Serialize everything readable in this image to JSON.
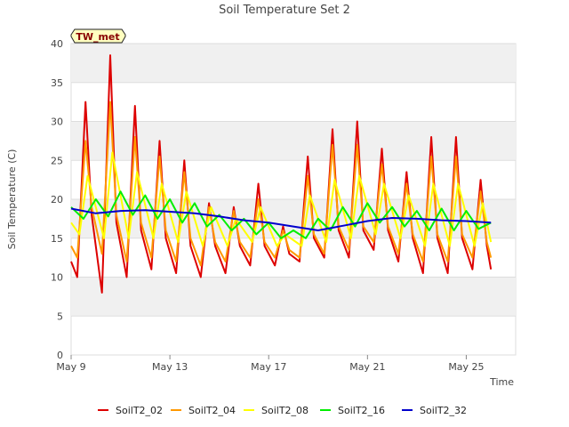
{
  "chart_data": {
    "type": "line",
    "title": "Soil Temperature Set 2",
    "xlabel": "Time",
    "ylabel": "Soil Temperature (C)",
    "site_label": "TW_met",
    "ylim": [
      0,
      40
    ],
    "yticks": [
      0,
      5,
      10,
      15,
      20,
      25,
      30,
      35,
      40
    ],
    "xlim": [
      "2024-05-09",
      "2024-05-27"
    ],
    "xticks": [
      {
        "date": "2024-05-09",
        "label": "May 9"
      },
      {
        "date": "2024-05-13",
        "label": "May 13"
      },
      {
        "date": "2024-05-17",
        "label": "May 17"
      },
      {
        "date": "2024-05-21",
        "label": "May 21"
      },
      {
        "date": "2024-05-25",
        "label": "May 25"
      }
    ],
    "grid": true,
    "legend_position": "bottom",
    "series": [
      {
        "name": "SoilT2_02",
        "color": "#dd0000",
        "values": [
          [
            "2024-05-09 00:00",
            12.0
          ],
          [
            "2024-05-09 06:00",
            10.0
          ],
          [
            "2024-05-09 14:00",
            32.5
          ],
          [
            "2024-05-09 20:00",
            18.0
          ],
          [
            "2024-05-10 06:00",
            8.0
          ],
          [
            "2024-05-10 14:00",
            38.5
          ],
          [
            "2024-05-10 20:00",
            17.0
          ],
          [
            "2024-05-11 06:00",
            10.0
          ],
          [
            "2024-05-11 14:00",
            32.0
          ],
          [
            "2024-05-11 20:00",
            16.0
          ],
          [
            "2024-05-12 06:00",
            11.0
          ],
          [
            "2024-05-12 14:00",
            27.5
          ],
          [
            "2024-05-12 20:00",
            15.0
          ],
          [
            "2024-05-13 06:00",
            10.5
          ],
          [
            "2024-05-13 14:00",
            25.0
          ],
          [
            "2024-05-13 20:00",
            14.0
          ],
          [
            "2024-05-14 06:00",
            10.0
          ],
          [
            "2024-05-14 14:00",
            19.5
          ],
          [
            "2024-05-14 20:00",
            14.0
          ],
          [
            "2024-05-15 06:00",
            10.5
          ],
          [
            "2024-05-15 14:00",
            19.0
          ],
          [
            "2024-05-15 20:00",
            14.0
          ],
          [
            "2024-05-16 06:00",
            11.5
          ],
          [
            "2024-05-16 14:00",
            22.0
          ],
          [
            "2024-05-16 20:00",
            14.0
          ],
          [
            "2024-05-17 06:00",
            11.5
          ],
          [
            "2024-05-17 14:00",
            16.5
          ],
          [
            "2024-05-17 20:00",
            13.0
          ],
          [
            "2024-05-18 06:00",
            12.0
          ],
          [
            "2024-05-18 14:00",
            25.5
          ],
          [
            "2024-05-18 20:00",
            15.0
          ],
          [
            "2024-05-19 06:00",
            12.5
          ],
          [
            "2024-05-19 14:00",
            29.0
          ],
          [
            "2024-05-19 20:00",
            16.0
          ],
          [
            "2024-05-20 06:00",
            12.5
          ],
          [
            "2024-05-20 14:00",
            30.0
          ],
          [
            "2024-05-20 20:00",
            16.0
          ],
          [
            "2024-05-21 06:00",
            13.5
          ],
          [
            "2024-05-21 14:00",
            26.5
          ],
          [
            "2024-05-21 20:00",
            16.0
          ],
          [
            "2024-05-22 06:00",
            12.0
          ],
          [
            "2024-05-22 14:00",
            23.5
          ],
          [
            "2024-05-22 20:00",
            15.0
          ],
          [
            "2024-05-23 06:00",
            10.5
          ],
          [
            "2024-05-23 14:00",
            28.0
          ],
          [
            "2024-05-23 20:00",
            15.0
          ],
          [
            "2024-05-24 06:00",
            10.5
          ],
          [
            "2024-05-24 14:00",
            28.0
          ],
          [
            "2024-05-24 20:00",
            15.0
          ],
          [
            "2024-05-25 06:00",
            11.0
          ],
          [
            "2024-05-25 14:00",
            22.5
          ],
          [
            "2024-05-25 20:00",
            14.0
          ],
          [
            "2024-05-26 00:00",
            11.0
          ]
        ]
      },
      {
        "name": "SoilT2_04",
        "color": "#ff9900",
        "values": [
          [
            "2024-05-09 00:00",
            14.0
          ],
          [
            "2024-05-09 06:00",
            12.5
          ],
          [
            "2024-05-09 14:00",
            27.5
          ],
          [
            "2024-05-09 20:00",
            19.0
          ],
          [
            "2024-05-10 06:00",
            13.0
          ],
          [
            "2024-05-10 14:00",
            32.5
          ],
          [
            "2024-05-10 20:00",
            18.0
          ],
          [
            "2024-05-11 06:00",
            12.0
          ],
          [
            "2024-05-11 14:00",
            28.0
          ],
          [
            "2024-05-11 20:00",
            17.0
          ],
          [
            "2024-05-12 06:00",
            12.5
          ],
          [
            "2024-05-12 14:00",
            25.5
          ],
          [
            "2024-05-12 20:00",
            16.0
          ],
          [
            "2024-05-13 06:00",
            12.0
          ],
          [
            "2024-05-13 14:00",
            23.5
          ],
          [
            "2024-05-13 20:00",
            15.0
          ],
          [
            "2024-05-14 06:00",
            11.5
          ],
          [
            "2024-05-14 14:00",
            19.0
          ],
          [
            "2024-05-14 20:00",
            14.5
          ],
          [
            "2024-05-15 06:00",
            12.0
          ],
          [
            "2024-05-15 14:00",
            18.5
          ],
          [
            "2024-05-15 20:00",
            14.5
          ],
          [
            "2024-05-16 06:00",
            12.5
          ],
          [
            "2024-05-16 14:00",
            20.0
          ],
          [
            "2024-05-16 20:00",
            14.5
          ],
          [
            "2024-05-17 06:00",
            12.5
          ],
          [
            "2024-05-17 14:00",
            16.0
          ],
          [
            "2024-05-17 20:00",
            13.5
          ],
          [
            "2024-05-18 06:00",
            12.5
          ],
          [
            "2024-05-18 14:00",
            23.0
          ],
          [
            "2024-05-18 20:00",
            15.5
          ],
          [
            "2024-05-19 06:00",
            13.0
          ],
          [
            "2024-05-19 14:00",
            27.0
          ],
          [
            "2024-05-19 20:00",
            16.5
          ],
          [
            "2024-05-20 06:00",
            13.5
          ],
          [
            "2024-05-20 14:00",
            27.0
          ],
          [
            "2024-05-20 20:00",
            16.5
          ],
          [
            "2024-05-21 06:00",
            14.5
          ],
          [
            "2024-05-21 14:00",
            24.5
          ],
          [
            "2024-05-21 20:00",
            16.5
          ],
          [
            "2024-05-22 06:00",
            13.0
          ],
          [
            "2024-05-22 14:00",
            22.0
          ],
          [
            "2024-05-22 20:00",
            15.5
          ],
          [
            "2024-05-23 06:00",
            12.0
          ],
          [
            "2024-05-23 14:00",
            25.5
          ],
          [
            "2024-05-23 20:00",
            15.5
          ],
          [
            "2024-05-24 06:00",
            12.0
          ],
          [
            "2024-05-24 14:00",
            25.5
          ],
          [
            "2024-05-24 20:00",
            15.5
          ],
          [
            "2024-05-25 06:00",
            12.5
          ],
          [
            "2024-05-25 14:00",
            21.0
          ],
          [
            "2024-05-25 20:00",
            14.5
          ],
          [
            "2024-05-26 00:00",
            12.5
          ]
        ]
      },
      {
        "name": "SoilT2_08",
        "color": "#ffff00",
        "values": [
          [
            "2024-05-09 00:00",
            17.0
          ],
          [
            "2024-05-09 08:00",
            15.5
          ],
          [
            "2024-05-09 16:00",
            23.0
          ],
          [
            "2024-05-10 08:00",
            15.0
          ],
          [
            "2024-05-10 16:00",
            26.0
          ],
          [
            "2024-05-11 08:00",
            15.0
          ],
          [
            "2024-05-11 16:00",
            23.5
          ],
          [
            "2024-05-12 08:00",
            15.0
          ],
          [
            "2024-05-12 16:00",
            22.0
          ],
          [
            "2024-05-13 08:00",
            14.5
          ],
          [
            "2024-05-13 16:00",
            21.0
          ],
          [
            "2024-05-14 08:00",
            14.0
          ],
          [
            "2024-05-14 16:00",
            19.0
          ],
          [
            "2024-05-15 08:00",
            14.0
          ],
          [
            "2024-05-15 16:00",
            17.5
          ],
          [
            "2024-05-16 08:00",
            14.5
          ],
          [
            "2024-05-16 16:00",
            19.0
          ],
          [
            "2024-05-17 08:00",
            14.0
          ],
          [
            "2024-05-17 16:00",
            15.5
          ],
          [
            "2024-05-18 08:00",
            14.0
          ],
          [
            "2024-05-18 16:00",
            20.5
          ],
          [
            "2024-05-19 08:00",
            14.5
          ],
          [
            "2024-05-19 16:00",
            22.5
          ],
          [
            "2024-05-20 08:00",
            15.0
          ],
          [
            "2024-05-20 16:00",
            23.0
          ],
          [
            "2024-05-21 08:00",
            15.5
          ],
          [
            "2024-05-21 16:00",
            22.0
          ],
          [
            "2024-05-22 08:00",
            15.0
          ],
          [
            "2024-05-22 16:00",
            20.5
          ],
          [
            "2024-05-23 08:00",
            14.0
          ],
          [
            "2024-05-23 16:00",
            22.0
          ],
          [
            "2024-05-24 08:00",
            14.0
          ],
          [
            "2024-05-24 16:00",
            22.0
          ],
          [
            "2024-05-25 08:00",
            14.0
          ],
          [
            "2024-05-25 16:00",
            19.5
          ],
          [
            "2024-05-26 00:00",
            14.5
          ]
        ]
      },
      {
        "name": "SoilT2_16",
        "color": "#00ee00",
        "values": [
          [
            "2024-05-09 00:00",
            19.0
          ],
          [
            "2024-05-09 12:00",
            17.5
          ],
          [
            "2024-05-10 00:00",
            20.0
          ],
          [
            "2024-05-10 12:00",
            17.8
          ],
          [
            "2024-05-11 00:00",
            21.0
          ],
          [
            "2024-05-11 12:00",
            18.0
          ],
          [
            "2024-05-12 00:00",
            20.5
          ],
          [
            "2024-05-12 12:00",
            17.5
          ],
          [
            "2024-05-13 00:00",
            20.0
          ],
          [
            "2024-05-13 12:00",
            17.0
          ],
          [
            "2024-05-14 00:00",
            19.5
          ],
          [
            "2024-05-14 12:00",
            16.5
          ],
          [
            "2024-05-15 00:00",
            18.0
          ],
          [
            "2024-05-15 12:00",
            16.0
          ],
          [
            "2024-05-16 00:00",
            17.5
          ],
          [
            "2024-05-16 12:00",
            15.5
          ],
          [
            "2024-05-17 00:00",
            17.0
          ],
          [
            "2024-05-17 12:00",
            15.0
          ],
          [
            "2024-05-18 00:00",
            16.0
          ],
          [
            "2024-05-18 12:00",
            15.0
          ],
          [
            "2024-05-19 00:00",
            17.5
          ],
          [
            "2024-05-19 12:00",
            16.0
          ],
          [
            "2024-05-20 00:00",
            19.0
          ],
          [
            "2024-05-20 12:00",
            16.5
          ],
          [
            "2024-05-21 00:00",
            19.5
          ],
          [
            "2024-05-21 12:00",
            17.0
          ],
          [
            "2024-05-22 00:00",
            19.0
          ],
          [
            "2024-05-22 12:00",
            16.5
          ],
          [
            "2024-05-23 00:00",
            18.5
          ],
          [
            "2024-05-23 12:00",
            16.0
          ],
          [
            "2024-05-24 00:00",
            18.8
          ],
          [
            "2024-05-24 12:00",
            16.0
          ],
          [
            "2024-05-25 00:00",
            18.5
          ],
          [
            "2024-05-25 12:00",
            16.2
          ],
          [
            "2024-05-26 00:00",
            17.0
          ]
        ]
      },
      {
        "name": "SoilT2_32",
        "color": "#0000cc",
        "values": [
          [
            "2024-05-09 00:00",
            18.8
          ],
          [
            "2024-05-10 00:00",
            18.2
          ],
          [
            "2024-05-11 00:00",
            18.5
          ],
          [
            "2024-05-12 00:00",
            18.6
          ],
          [
            "2024-05-13 00:00",
            18.4
          ],
          [
            "2024-05-14 00:00",
            18.2
          ],
          [
            "2024-05-15 00:00",
            17.8
          ],
          [
            "2024-05-16 00:00",
            17.3
          ],
          [
            "2024-05-17 00:00",
            17.0
          ],
          [
            "2024-05-18 00:00",
            16.5
          ],
          [
            "2024-05-19 00:00",
            16.0
          ],
          [
            "2024-05-20 00:00",
            16.6
          ],
          [
            "2024-05-21 00:00",
            17.2
          ],
          [
            "2024-05-22 00:00",
            17.6
          ],
          [
            "2024-05-23 00:00",
            17.5
          ],
          [
            "2024-05-24 00:00",
            17.3
          ],
          [
            "2024-05-25 00:00",
            17.2
          ],
          [
            "2024-05-26 00:00",
            17.0
          ]
        ]
      }
    ]
  }
}
